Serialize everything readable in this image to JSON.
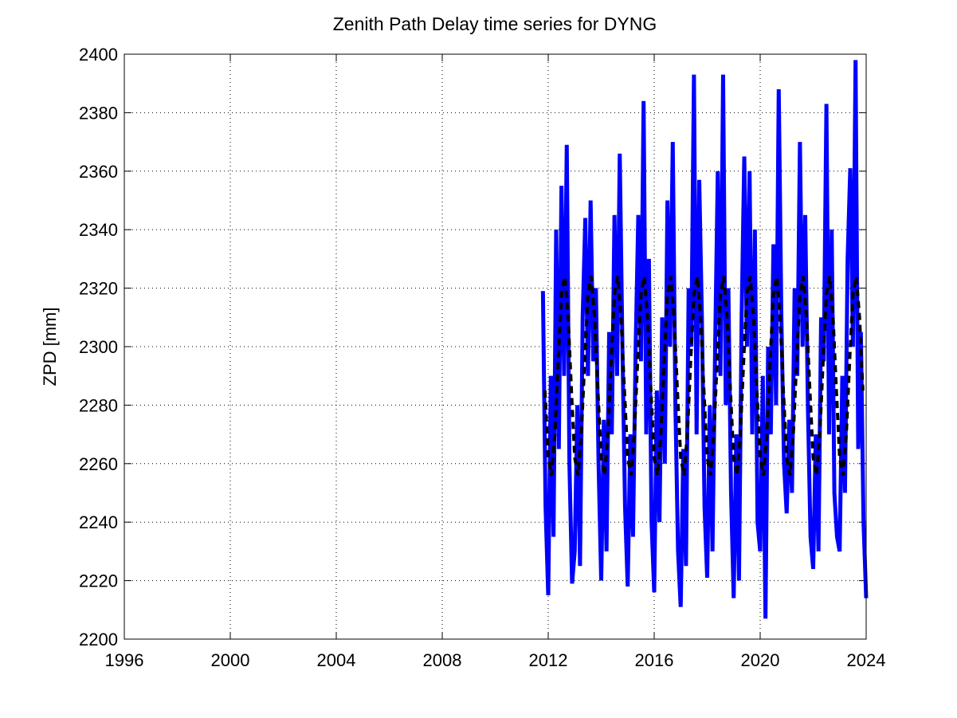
{
  "chart_data": {
    "type": "line",
    "title": "Zenith Path Delay time series for DYNG",
    "y_label": "ZPD [mm]",
    "xlim": [
      1996,
      2024
    ],
    "xticks": [
      1996,
      2000,
      2004,
      2008,
      2012,
      2016,
      2020,
      2024
    ],
    "ylim": [
      2200,
      2400
    ],
    "yticks": [
      2200,
      2220,
      2240,
      2260,
      2280,
      2300,
      2320,
      2340,
      2360,
      2380,
      2400
    ],
    "grid": true,
    "series": [
      {
        "color": "#0000ff",
        "line_style": "solid",
        "x": [
          2011.8,
          2011.9,
          2012.0,
          2012.1,
          2012.2,
          2012.3,
          2012.4,
          2012.5,
          2012.6,
          2012.7,
          2012.8,
          2012.9,
          2013.0,
          2013.1,
          2013.2,
          2013.3,
          2013.4,
          2013.5,
          2013.6,
          2013.7,
          2013.8,
          2013.9,
          2014.0,
          2014.1,
          2014.2,
          2014.3,
          2014.4,
          2014.5,
          2014.6,
          2014.7,
          2014.8,
          2014.9,
          2015.0,
          2015.1,
          2015.2,
          2015.3,
          2015.4,
          2015.5,
          2015.6,
          2015.7,
          2015.8,
          2015.9,
          2016.0,
          2016.1,
          2016.2,
          2016.3,
          2016.4,
          2016.5,
          2016.6,
          2016.7,
          2016.8,
          2016.9,
          2017.0,
          2017.1,
          2017.2,
          2017.3,
          2017.4,
          2017.5,
          2017.6,
          2017.7,
          2017.8,
          2017.9,
          2018.0,
          2018.1,
          2018.2,
          2018.3,
          2018.4,
          2018.5,
          2018.6,
          2018.7,
          2018.8,
          2018.9,
          2019.0,
          2019.1,
          2019.2,
          2019.3,
          2019.4,
          2019.5,
          2019.6,
          2019.7,
          2019.8,
          2019.9,
          2020.0,
          2020.1,
          2020.2,
          2020.3,
          2020.4,
          2020.5,
          2020.6,
          2020.7,
          2020.8,
          2020.9,
          2021.0,
          2021.1,
          2021.2,
          2021.3,
          2021.4,
          2021.5,
          2021.6,
          2021.7,
          2021.8,
          2021.9,
          2022.0,
          2022.1,
          2022.2,
          2022.3,
          2022.4,
          2022.5,
          2022.6,
          2022.7,
          2022.8,
          2022.9,
          2023.0,
          2023.1,
          2023.2,
          2023.3,
          2023.4,
          2023.5,
          2023.6,
          2023.7,
          2023.8,
          2023.9,
          2024.0
        ],
        "values": [
          2319,
          2245,
          2215,
          2290,
          2235,
          2340,
          2265,
          2355,
          2290,
          2369,
          2260,
          2219,
          2230,
          2280,
          2225,
          2310,
          2344,
          2290,
          2350,
          2295,
          2320,
          2260,
          2220,
          2275,
          2230,
          2305,
          2270,
          2345,
          2290,
          2366,
          2300,
          2245,
          2218,
          2270,
          2235,
          2300,
          2345,
          2295,
          2384,
          2270,
          2330,
          2240,
          2216,
          2285,
          2240,
          2310,
          2260,
          2350,
          2300,
          2370,
          2280,
          2230,
          2211,
          2265,
          2225,
          2320,
          2300,
          2393,
          2270,
          2357,
          2310,
          2245,
          2221,
          2280,
          2230,
          2300,
          2360,
          2290,
          2393,
          2280,
          2320,
          2250,
          2214,
          2270,
          2220,
          2310,
          2365,
          2300,
          2360,
          2270,
          2340,
          2240,
          2230,
          2290,
          2207,
          2300,
          2270,
          2335,
          2280,
          2388,
          2310,
          2260,
          2243,
          2275,
          2250,
          2320,
          2290,
          2370,
          2300,
          2345,
          2280,
          2235,
          2224,
          2270,
          2230,
          2310,
          2295,
          2383,
          2270,
          2340,
          2250,
          2235,
          2230,
          2290,
          2250,
          2330,
          2361,
          2300,
          2398,
          2265,
          2305,
          2240,
          2214
        ]
      },
      {
        "color": "#000000",
        "line_style": "dashed",
        "x": [
          2011.875,
          2012.0,
          2012.125,
          2012.25,
          2012.375,
          2012.5,
          2012.625,
          2012.75,
          2012.875,
          2013.0,
          2013.125,
          2013.25,
          2013.375,
          2013.5,
          2013.625,
          2013.75,
          2013.875,
          2014.0,
          2014.125,
          2014.25,
          2014.375,
          2014.5,
          2014.625,
          2014.75,
          2014.875,
          2015.0,
          2015.125,
          2015.25,
          2015.375,
          2015.5,
          2015.625,
          2015.75,
          2015.875,
          2016.0,
          2016.125,
          2016.25,
          2016.375,
          2016.5,
          2016.625,
          2016.75,
          2016.875,
          2017.0,
          2017.125,
          2017.25,
          2017.375,
          2017.5,
          2017.625,
          2017.75,
          2017.875,
          2018.0,
          2018.125,
          2018.25,
          2018.375,
          2018.5,
          2018.625,
          2018.75,
          2018.875,
          2019.0,
          2019.125,
          2019.25,
          2019.375,
          2019.5,
          2019.625,
          2019.75,
          2019.875,
          2020.0,
          2020.125,
          2020.25,
          2020.375,
          2020.5,
          2020.625,
          2020.75,
          2020.875,
          2021.0,
          2021.125,
          2021.25,
          2021.375,
          2021.5,
          2021.625,
          2021.75,
          2021.875,
          2022.0,
          2022.125,
          2022.25,
          2022.375,
          2022.5,
          2022.625,
          2022.75,
          2022.875,
          2023.0,
          2023.125,
          2023.25,
          2023.375,
          2023.5,
          2023.625,
          2023.75,
          2023.875
        ],
        "values": [
          2285,
          2262,
          2256,
          2270,
          2295,
          2318,
          2324,
          2310,
          2285,
          2262,
          2256,
          2270,
          2295,
          2318,
          2324,
          2310,
          2285,
          2262,
          2256,
          2270,
          2295,
          2318,
          2324,
          2310,
          2285,
          2262,
          2256,
          2270,
          2295,
          2318,
          2324,
          2310,
          2285,
          2262,
          2256,
          2270,
          2295,
          2318,
          2324,
          2310,
          2285,
          2262,
          2256,
          2270,
          2295,
          2318,
          2324,
          2310,
          2285,
          2262,
          2256,
          2270,
          2295,
          2318,
          2324,
          2310,
          2285,
          2262,
          2256,
          2270,
          2295,
          2318,
          2324,
          2310,
          2285,
          2262,
          2256,
          2270,
          2295,
          2318,
          2324,
          2310,
          2285,
          2262,
          2256,
          2270,
          2295,
          2318,
          2324,
          2310,
          2285,
          2262,
          2256,
          2270,
          2295,
          2318,
          2324,
          2310,
          2285,
          2262,
          2256,
          2270,
          2295,
          2318,
          2324,
          2310,
          2285
        ]
      }
    ]
  }
}
